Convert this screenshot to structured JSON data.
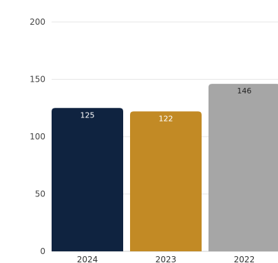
{
  "chart_data": {
    "type": "bar",
    "categories": [
      "2024",
      "2023",
      "2022"
    ],
    "values": [
      125,
      122,
      146
    ],
    "data_labels": [
      "125",
      "122",
      "146"
    ],
    "colors": [
      "#0f2340",
      "#c28a25",
      "#a6a6a6"
    ],
    "label_colors": [
      "#ffffff",
      "#ffffff",
      "#222222"
    ],
    "ylim": [
      0,
      200
    ],
    "yticks": [
      {
        "value": 0,
        "label": "0"
      },
      {
        "value": 50,
        "label": "50"
      },
      {
        "value": 100,
        "label": "100"
      },
      {
        "value": 150,
        "label": "150"
      },
      {
        "value": 200,
        "label": "200"
      }
    ],
    "grid": true,
    "legend": "none"
  }
}
